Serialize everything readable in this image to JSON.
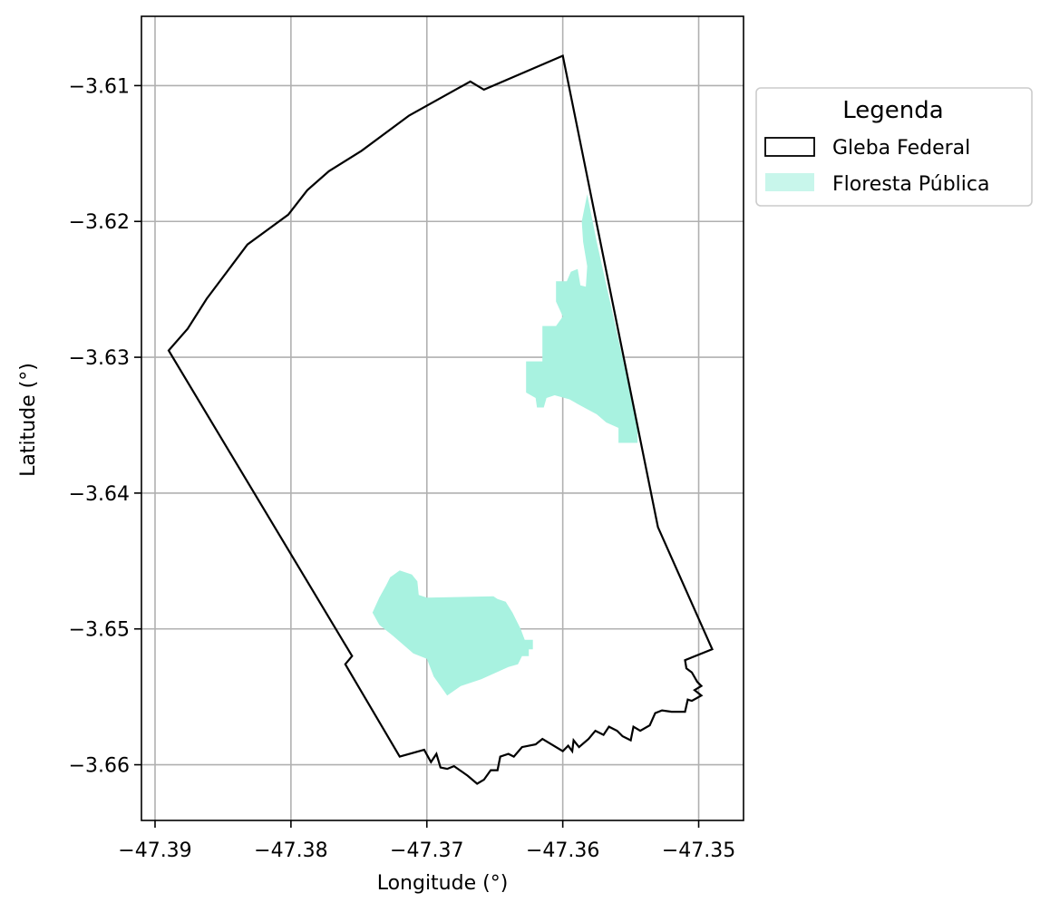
{
  "chart_data": {
    "type": "map",
    "xlabel": "Longitude (°)",
    "ylabel": "Latitude (°)",
    "xlim": [
      -47.391,
      -47.3467
    ],
    "ylim": [
      -3.6641,
      -3.6049
    ],
    "xticks": [
      -47.39,
      -47.38,
      -47.37,
      -47.36,
      -47.35
    ],
    "yticks": [
      -3.61,
      -3.62,
      -3.63,
      -3.64,
      -3.65,
      -3.66
    ],
    "xtick_labels": [
      "−47.39",
      "−47.38",
      "−47.37",
      "−47.36",
      "−47.35"
    ],
    "ytick_labels": [
      "−3.61",
      "−3.62",
      "−3.63",
      "−3.64",
      "−3.65",
      "−3.66"
    ],
    "grid": true,
    "legend": {
      "title": "Legenda",
      "placement": "outside upper right",
      "entries": [
        {
          "label": "Gleba Federal",
          "style": "outline"
        },
        {
          "label": "Floresta Pública",
          "style": "fill"
        }
      ]
    },
    "colors": {
      "gleba_edge": "#000000",
      "floresta_fill": "#a8f2e0",
      "grid": "#b0b0b0"
    },
    "gleba_federal": [
      [
        -47.36,
        -3.6078
      ],
      [
        -47.3658,
        -3.6103
      ],
      [
        -47.3668,
        -3.6097
      ],
      [
        -47.3713,
        -3.6122
      ],
      [
        -47.3748,
        -3.6148
      ],
      [
        -47.3772,
        -3.6163
      ],
      [
        -47.3788,
        -3.6177
      ],
      [
        -47.3802,
        -3.6195
      ],
      [
        -47.3832,
        -3.6217
      ],
      [
        -47.3862,
        -3.6257
      ],
      [
        -47.3876,
        -3.6279
      ],
      [
        -47.389,
        -3.6295
      ],
      [
        -47.3755,
        -3.652
      ],
      [
        -47.376,
        -3.6526
      ],
      [
        -47.372,
        -3.6594
      ],
      [
        -47.3702,
        -3.6589
      ],
      [
        -47.3697,
        -3.6598
      ],
      [
        -47.3693,
        -3.6592
      ],
      [
        -47.369,
        -3.6602
      ],
      [
        -47.3685,
        -3.6603
      ],
      [
        -47.368,
        -3.6601
      ],
      [
        -47.367,
        -3.6608
      ],
      [
        -47.3663,
        -3.6614
      ],
      [
        -47.3658,
        -3.6611
      ],
      [
        -47.3653,
        -3.6604
      ],
      [
        -47.3648,
        -3.6604
      ],
      [
        -47.3646,
        -3.6594
      ],
      [
        -47.364,
        -3.6592
      ],
      [
        -47.3636,
        -3.6594
      ],
      [
        -47.363,
        -3.6587
      ],
      [
        -47.362,
        -3.6585
      ],
      [
        -47.3615,
        -3.6581
      ],
      [
        -47.36,
        -3.659
      ],
      [
        -47.3596,
        -3.6586
      ],
      [
        -47.3593,
        -3.659
      ],
      [
        -47.3592,
        -3.6582
      ],
      [
        -47.3588,
        -3.6587
      ],
      [
        -47.3581,
        -3.6581
      ],
      [
        -47.3576,
        -3.6575
      ],
      [
        -47.357,
        -3.6578
      ],
      [
        -47.3566,
        -3.6572
      ],
      [
        -47.356,
        -3.6575
      ],
      [
        -47.3556,
        -3.6579
      ],
      [
        -47.355,
        -3.6582
      ],
      [
        -47.3548,
        -3.6572
      ],
      [
        -47.3543,
        -3.6575
      ],
      [
        -47.3536,
        -3.6571
      ],
      [
        -47.3532,
        -3.6562
      ],
      [
        -47.3527,
        -3.656
      ],
      [
        -47.352,
        -3.6561
      ],
      [
        -47.351,
        -3.6561
      ],
      [
        -47.3508,
        -3.6552
      ],
      [
        -47.3505,
        -3.6553
      ],
      [
        -47.3498,
        -3.6549
      ],
      [
        -47.3503,
        -3.6545
      ],
      [
        -47.3498,
        -3.6542
      ],
      [
        -47.3501,
        -3.6539
      ],
      [
        -47.3505,
        -3.6532
      ],
      [
        -47.3509,
        -3.6529
      ],
      [
        -47.351,
        -3.6523
      ],
      [
        -47.349,
        -3.6515
      ],
      [
        -47.353,
        -3.6425
      ],
      [
        -47.36,
        -3.6078
      ]
    ],
    "floresta_publica": [
      [
        [
          -47.3582,
          -3.618
        ],
        [
          -47.3578,
          -3.62
        ],
        [
          -47.3575,
          -3.6215
        ],
        [
          -47.3565,
          -3.626
        ],
        [
          -47.3555,
          -3.6305
        ],
        [
          -47.3545,
          -3.635
        ],
        [
          -47.3545,
          -3.6363
        ],
        [
          -47.3559,
          -3.6363
        ],
        [
          -47.3559,
          -3.6352
        ],
        [
          -47.3568,
          -3.6348
        ],
        [
          -47.3575,
          -3.6342
        ],
        [
          -47.3588,
          -3.6335
        ],
        [
          -47.3595,
          -3.6331
        ],
        [
          -47.3606,
          -3.6328
        ],
        [
          -47.3612,
          -3.633
        ],
        [
          -47.3614,
          -3.6337
        ],
        [
          -47.3619,
          -3.6337
        ],
        [
          -47.362,
          -3.633
        ],
        [
          -47.3627,
          -3.6326
        ],
        [
          -47.3627,
          -3.6303
        ],
        [
          -47.3615,
          -3.6303
        ],
        [
          -47.3615,
          -3.6277
        ],
        [
          -47.3605,
          -3.6277
        ],
        [
          -47.36,
          -3.627
        ],
        [
          -47.3605,
          -3.6259
        ],
        [
          -47.3605,
          -3.6244
        ],
        [
          -47.3597,
          -3.6244
        ],
        [
          -47.3594,
          -3.6237
        ],
        [
          -47.3589,
          -3.6235
        ],
        [
          -47.3587,
          -3.6247
        ],
        [
          -47.3583,
          -3.6248
        ],
        [
          -47.3582,
          -3.6233
        ],
        [
          -47.3585,
          -3.6215
        ],
        [
          -47.3586,
          -3.62
        ],
        [
          -47.3582,
          -3.618
        ]
      ],
      [
        [
          -47.374,
          -3.6488
        ],
        [
          -47.3735,
          -3.6497
        ],
        [
          -47.3725,
          -3.6505
        ],
        [
          -47.371,
          -3.6518
        ],
        [
          -47.37,
          -3.6522
        ],
        [
          -47.3695,
          -3.6535
        ],
        [
          -47.3685,
          -3.6549
        ],
        [
          -47.3675,
          -3.6542
        ],
        [
          -47.366,
          -3.6537
        ],
        [
          -47.364,
          -3.6528
        ],
        [
          -47.3633,
          -3.6526
        ],
        [
          -47.363,
          -3.652
        ],
        [
          -47.3625,
          -3.652
        ],
        [
          -47.3625,
          -3.6515
        ],
        [
          -47.3622,
          -3.6515
        ],
        [
          -47.3622,
          -3.6508
        ],
        [
          -47.3628,
          -3.6508
        ],
        [
          -47.3631,
          -3.65
        ],
        [
          -47.3637,
          -3.6488
        ],
        [
          -47.3642,
          -3.648
        ],
        [
          -47.3648,
          -3.6478
        ],
        [
          -47.3651,
          -3.6476
        ],
        [
          -47.37,
          -3.6477
        ],
        [
          -47.3706,
          -3.6475
        ],
        [
          -47.3707,
          -3.6465
        ],
        [
          -47.3711,
          -3.646
        ],
        [
          -47.372,
          -3.6457
        ],
        [
          -47.3727,
          -3.6462
        ],
        [
          -47.373,
          -3.6468
        ],
        [
          -47.3735,
          -3.6477
        ],
        [
          -47.374,
          -3.6488
        ]
      ]
    ]
  }
}
